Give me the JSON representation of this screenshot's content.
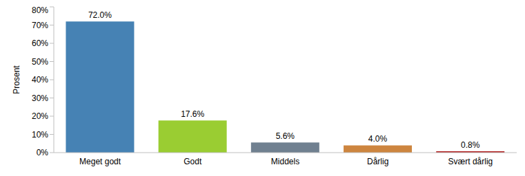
{
  "chart_data": {
    "type": "bar",
    "ylabel": "Prosent",
    "categories": [
      "Meget godt",
      "Godt",
      "Middels",
      "Dårlig",
      "Svært dårlig"
    ],
    "values": [
      72.0,
      17.6,
      5.6,
      4.0,
      0.8
    ],
    "value_labels": [
      "72.0%",
      "17.6%",
      "5.6%",
      "4.0%",
      "0.8%"
    ],
    "colors": [
      "#4682b4",
      "#9acd32",
      "#708090",
      "#cd853f",
      "#b22222"
    ],
    "ylim": [
      0,
      80
    ],
    "yticks": [
      {
        "value": 0,
        "label": "0%"
      },
      {
        "value": 10,
        "label": "10%"
      },
      {
        "value": 20,
        "label": "20%"
      },
      {
        "value": 30,
        "label": "30%"
      },
      {
        "value": 40,
        "label": "40%"
      },
      {
        "value": 50,
        "label": "50%"
      },
      {
        "value": 60,
        "label": "60%"
      },
      {
        "value": 70,
        "label": "70%"
      },
      {
        "value": 80,
        "label": "80%"
      }
    ],
    "grid": false,
    "data_labels": true
  }
}
